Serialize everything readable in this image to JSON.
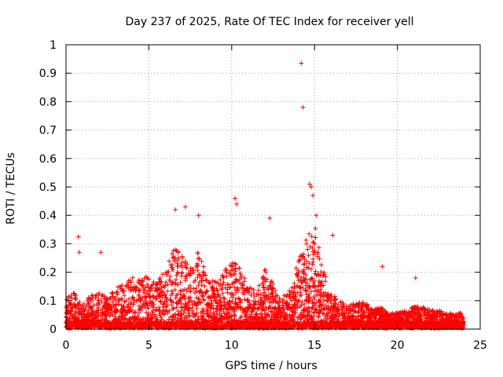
{
  "chart_data": {
    "type": "scatter",
    "title": "Day 237 of 2025, Rate Of TEC Index for receiver yell",
    "xlabel": "GPS time / hours",
    "ylabel": "ROTI / TECUs",
    "xlim": [
      0,
      25
    ],
    "ylim": [
      0,
      1
    ],
    "xticks": [
      "0",
      "5",
      "10",
      "15",
      "20",
      "25"
    ],
    "yticks": [
      "0",
      "0.1",
      "0.2",
      "0.3",
      "0.4",
      "0.5",
      "0.6",
      "0.7",
      "0.8",
      "0.9",
      "1"
    ],
    "grid": true,
    "marker": "plus",
    "color": "#ff0000",
    "envelope": {
      "x": [
        0,
        0.5,
        1,
        1.5,
        2,
        2.5,
        3,
        3.5,
        4,
        4.5,
        5,
        5.5,
        6,
        6.5,
        7,
        7.5,
        8,
        8.5,
        9,
        9.5,
        10,
        10.5,
        11,
        11.5,
        12,
        12.5,
        13,
        13.5,
        14,
        14.5,
        15,
        15.5,
        16,
        16.5,
        17,
        17.5,
        18,
        18.5,
        19,
        19.5,
        20,
        20.5,
        21,
        21.5,
        22,
        22.5,
        23,
        23.5,
        24
      ],
      "typical_max": [
        0.1,
        0.12,
        0.08,
        0.11,
        0.12,
        0.1,
        0.14,
        0.15,
        0.17,
        0.16,
        0.18,
        0.15,
        0.2,
        0.27,
        0.25,
        0.2,
        0.26,
        0.17,
        0.16,
        0.18,
        0.24,
        0.2,
        0.14,
        0.12,
        0.2,
        0.15,
        0.1,
        0.13,
        0.22,
        0.32,
        0.35,
        0.2,
        0.12,
        0.09,
        0.08,
        0.08,
        0.09,
        0.06,
        0.07,
        0.05,
        0.05,
        0.06,
        0.08,
        0.07,
        0.06,
        0.06,
        0.05,
        0.05,
        0.05
      ]
    },
    "notable_points": [
      {
        "x": 0.75,
        "y": 0.325
      },
      {
        "x": 0.8,
        "y": 0.27
      },
      {
        "x": 2.1,
        "y": 0.27
      },
      {
        "x": 6.6,
        "y": 0.42
      },
      {
        "x": 7.2,
        "y": 0.43
      },
      {
        "x": 8.0,
        "y": 0.4
      },
      {
        "x": 10.2,
        "y": 0.46
      },
      {
        "x": 10.3,
        "y": 0.44
      },
      {
        "x": 12.3,
        "y": 0.39
      },
      {
        "x": 14.2,
        "y": 0.935
      },
      {
        "x": 14.3,
        "y": 0.78
      },
      {
        "x": 14.7,
        "y": 0.51
      },
      {
        "x": 14.8,
        "y": 0.5
      },
      {
        "x": 14.9,
        "y": 0.47
      },
      {
        "x": 15.1,
        "y": 0.4
      },
      {
        "x": 16.1,
        "y": 0.33
      },
      {
        "x": 19.1,
        "y": 0.22
      },
      {
        "x": 21.1,
        "y": 0.18
      }
    ]
  }
}
